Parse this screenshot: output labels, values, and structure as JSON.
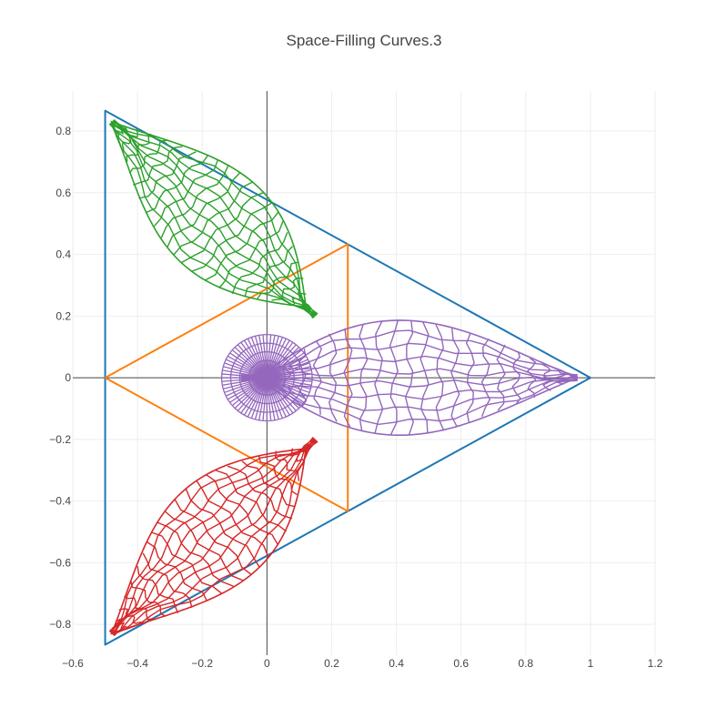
{
  "chart_data": {
    "type": "line",
    "title": "Space-Filling Curves.3",
    "xlabel": "",
    "ylabel": "",
    "xlim": [
      -0.6,
      1.2
    ],
    "ylim": [
      -0.9,
      0.93
    ],
    "x_ticks": [
      -0.6,
      -0.4,
      -0.2,
      0,
      0.2,
      0.4,
      0.6,
      0.8,
      1,
      1.2
    ],
    "x_tick_labels": [
      "−0.6",
      "−0.4",
      "−0.2",
      "0",
      "0.2",
      "0.4",
      "0.6",
      "0.8",
      "1",
      "1.2"
    ],
    "y_ticks": [
      -0.8,
      -0.6,
      -0.4,
      -0.2,
      0,
      0.2,
      0.4,
      0.6,
      0.8
    ],
    "y_tick_labels": [
      "−0.8",
      "−0.6",
      "−0.4",
      "−0.2",
      "0",
      "0.2",
      "0.4",
      "0.6",
      "0.8"
    ],
    "grid": true,
    "legend": "none",
    "series": [
      {
        "color": "#1f77b4",
        "kind": "polyline",
        "x": [
          1,
          -0.5,
          -0.5,
          1
        ],
        "y": [
          0,
          0.866,
          -0.866,
          0
        ]
      },
      {
        "color": "#ff7f0e",
        "kind": "polyline",
        "x": [
          -0.5,
          0.25,
          0.25,
          -0.5
        ],
        "y": [
          0,
          0.433,
          -0.433,
          0
        ]
      },
      {
        "color": "#2ca02c",
        "kind": "lobe",
        "tip": [
          -0.48,
          0.83
        ],
        "base": [
          0.15,
          0.2
        ],
        "width": 0.22
      },
      {
        "color": "#d62728",
        "kind": "lobe",
        "tip": [
          -0.48,
          -0.83
        ],
        "base": [
          0.15,
          -0.2
        ],
        "width": 0.22
      },
      {
        "color": "#9467bd",
        "kind": "lobe",
        "tip": [
          0.96,
          0.0
        ],
        "base": [
          -0.08,
          0.0
        ],
        "width": 0.24
      },
      {
        "color": "#9467bd",
        "kind": "center",
        "center": [
          0,
          0
        ],
        "radius": 0.14
      }
    ]
  }
}
